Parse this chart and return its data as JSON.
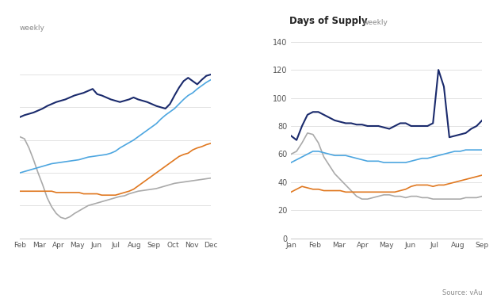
{
  "left_label": "weekly",
  "right_title_bold": "Days of Supply",
  "right_title_light": "weekly",
  "source": "Source: vAu",
  "colors": {
    "2021": "#aaaaaa",
    "2022": "#e07820",
    "2023": "#4da6e0",
    "2024": "#1a2a6c"
  },
  "left_xticks": [
    "Feb",
    "Mar",
    "Apr",
    "May",
    "Jun",
    "Jul",
    "Aug",
    "Sep",
    "Oct",
    "Nov",
    "Dec"
  ],
  "right_xticks": [
    "Jan",
    "Feb",
    "Mar",
    "Apr",
    "May",
    "Jun",
    "Jul",
    "Aug",
    "Sep"
  ],
  "right_yticks": [
    0,
    20,
    40,
    60,
    80,
    100,
    120,
    140
  ],
  "left_2021": [
    2.55,
    2.52,
    2.38,
    2.2,
    2.0,
    1.82,
    1.62,
    1.48,
    1.38,
    1.32,
    1.3,
    1.33,
    1.38,
    1.42,
    1.46,
    1.5,
    1.52,
    1.54,
    1.56,
    1.58,
    1.6,
    1.62,
    1.64,
    1.65,
    1.68,
    1.7,
    1.72,
    1.73,
    1.74,
    1.75,
    1.76,
    1.78,
    1.8,
    1.82,
    1.84,
    1.85,
    1.86,
    1.87,
    1.88,
    1.89,
    1.9,
    1.91,
    1.92
  ],
  "left_2022": [
    1.72,
    1.72,
    1.72,
    1.72,
    1.72,
    1.72,
    1.72,
    1.72,
    1.7,
    1.7,
    1.7,
    1.7,
    1.7,
    1.7,
    1.68,
    1.68,
    1.68,
    1.68,
    1.66,
    1.66,
    1.66,
    1.66,
    1.68,
    1.7,
    1.72,
    1.75,
    1.8,
    1.85,
    1.9,
    1.95,
    2.0,
    2.05,
    2.1,
    2.15,
    2.2,
    2.25,
    2.28,
    2.3,
    2.35,
    2.38,
    2.4,
    2.43,
    2.45
  ],
  "left_2023": [
    2.0,
    2.02,
    2.04,
    2.06,
    2.08,
    2.1,
    2.12,
    2.14,
    2.15,
    2.16,
    2.17,
    2.18,
    2.19,
    2.2,
    2.22,
    2.24,
    2.25,
    2.26,
    2.27,
    2.28,
    2.3,
    2.33,
    2.38,
    2.42,
    2.46,
    2.5,
    2.55,
    2.6,
    2.65,
    2.7,
    2.75,
    2.82,
    2.88,
    2.93,
    2.98,
    3.05,
    3.12,
    3.18,
    3.22,
    3.28,
    3.33,
    3.38,
    3.42
  ],
  "left_2024": [
    2.85,
    2.88,
    2.9,
    2.92,
    2.95,
    2.98,
    3.02,
    3.05,
    3.08,
    3.1,
    3.12,
    3.15,
    3.18,
    3.2,
    3.22,
    3.25,
    3.28,
    3.2,
    3.18,
    3.15,
    3.12,
    3.1,
    3.08,
    3.1,
    3.12,
    3.15,
    3.12,
    3.1,
    3.08,
    3.05,
    3.02,
    3.0,
    2.98,
    3.05,
    3.18,
    3.3,
    3.4,
    3.45,
    3.4,
    3.35,
    3.42,
    3.48,
    3.5
  ],
  "right_2021": [
    60,
    62,
    68,
    75,
    74,
    68,
    58,
    52,
    46,
    42,
    38,
    34,
    30,
    28,
    28,
    29,
    30,
    31,
    31,
    30,
    30,
    29,
    30,
    30,
    29,
    29,
    28,
    28,
    28,
    28,
    28,
    28,
    29,
    29,
    29,
    30
  ],
  "right_2022": [
    33,
    35,
    37,
    36,
    35,
    35,
    34,
    34,
    34,
    34,
    33,
    33,
    33,
    33,
    33,
    33,
    33,
    33,
    33,
    33,
    34,
    35,
    37,
    38,
    38,
    38,
    37,
    38,
    38,
    39,
    40,
    41,
    42,
    43,
    44,
    45
  ],
  "right_2023": [
    54,
    56,
    58,
    60,
    62,
    62,
    61,
    60,
    59,
    59,
    59,
    58,
    57,
    56,
    55,
    55,
    55,
    54,
    54,
    54,
    54,
    54,
    55,
    56,
    57,
    57,
    58,
    59,
    60,
    61,
    62,
    62,
    63,
    63,
    63,
    63
  ],
  "right_2024": [
    73,
    70,
    80,
    88,
    90,
    90,
    88,
    86,
    84,
    83,
    82,
    82,
    81,
    81,
    80,
    80,
    80,
    79,
    78,
    80,
    82,
    82,
    80,
    80,
    80,
    80,
    82,
    120,
    108,
    72,
    73,
    74,
    75,
    78,
    80,
    84
  ]
}
